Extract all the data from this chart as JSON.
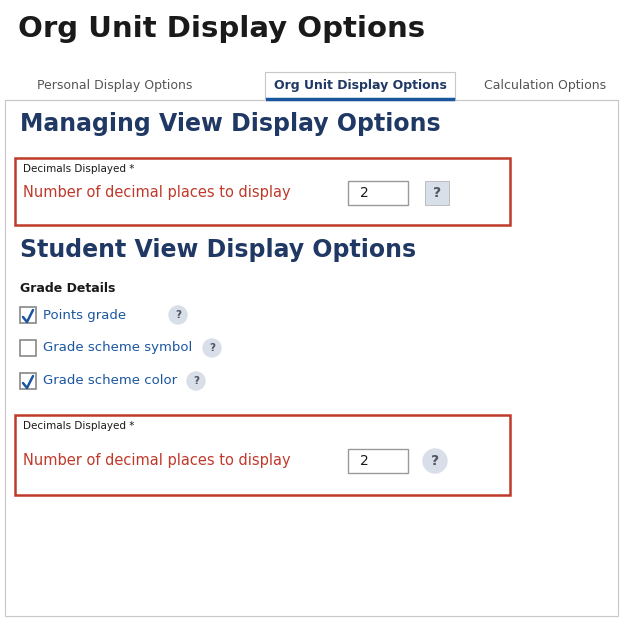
{
  "title": "Org Unit Display Options",
  "tab_personal": "Personal Display Options",
  "tab_org": "Org Unit Display Options",
  "tab_calc": "Calculation Options",
  "section1_title": "Managing View Display Options",
  "section2_title": "Student View Display Options",
  "decimals_label": "Decimals Displayed *",
  "decimal_desc": "Number of decimal places to display",
  "decimal_value": "2",
  "grade_details_label": "Grade Details",
  "checkbox1_label": "Points grade",
  "checkbox1_checked": true,
  "checkbox2_label": "Grade scheme symbol",
  "checkbox2_checked": false,
  "checkbox3_label": "Grade scheme color",
  "checkbox3_checked": true,
  "bg_color": "#ffffff",
  "border_color": "#c8c8c8",
  "red_border": "#c0392b",
  "title_color": "#1a1a1a",
  "tab_active_color": "#1f3864",
  "tab_inactive_color": "#555555",
  "tab_underline_color": "#1a56a0",
  "section_title_color": "#1f3864",
  "label_color": "#1a1a1a",
  "red_label_color": "#c0392b",
  "checkbox_label_color": "#1a56a0",
  "help_icon_color": "#555566",
  "help_icon_bg": "#d9dfe8",
  "input_border_color": "#999999",
  "input_bg": "#ffffff"
}
